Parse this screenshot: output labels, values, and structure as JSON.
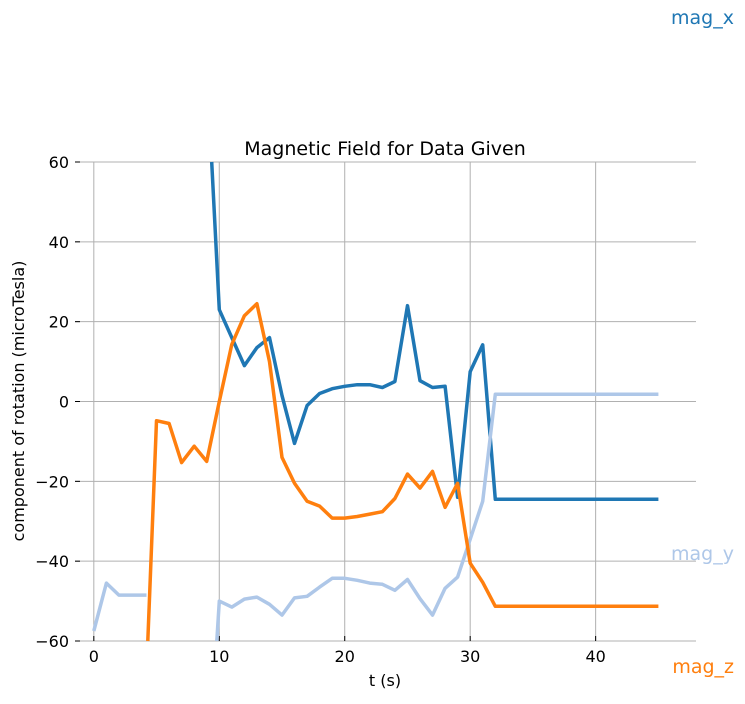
{
  "chart_data": {
    "type": "line",
    "title": "Magnetic Field for Data Given",
    "xlabel": "t (s)",
    "ylabel": "component of rotation (microTesla)",
    "xlim": [
      -1.5,
      48
    ],
    "ylim": [
      -60,
      60
    ],
    "xticks": [
      0,
      10,
      20,
      30,
      40
    ],
    "yticks": [
      -60,
      -40,
      -20,
      0,
      20,
      40,
      60
    ],
    "grid": true,
    "legend": "right, labels at line ends",
    "series": [
      {
        "name": "mag_x",
        "color": "#1f77b4",
        "x": [
          9.4,
          10,
          11,
          12,
          13,
          14,
          15,
          16,
          17,
          18,
          19,
          20,
          21,
          22,
          23,
          24,
          25,
          26,
          27,
          28,
          29,
          30,
          31,
          32,
          45
        ],
        "y": [
          60,
          23,
          16,
          9,
          13.5,
          16,
          1.5,
          -10.5,
          -1,
          2,
          3.2,
          3.8,
          4.2,
          4.2,
          3.5,
          5,
          24,
          5.2,
          3.5,
          3.8,
          -24,
          7.5,
          14.2,
          -24.5,
          -24.5
        ]
      },
      {
        "name": "mag_y",
        "color": "#aec7e8",
        "x": [
          0,
          1,
          2,
          3,
          4,
          4.2,
          null,
          9.8,
          10,
          11,
          12,
          13,
          14,
          15,
          16,
          17,
          18,
          19,
          20,
          21,
          22,
          23,
          24,
          25,
          26,
          27,
          28,
          29,
          30,
          31,
          32,
          45
        ],
        "y": [
          -57.5,
          -45.5,
          -48.5,
          -48.5,
          -48.5,
          -48.5,
          null,
          -60,
          -50,
          -51.5,
          -49.5,
          -49,
          -50.8,
          -53.5,
          -49.2,
          -48.8,
          -46.5,
          -44.3,
          -44.3,
          -44.8,
          -45.5,
          -45.8,
          -47.3,
          -44.6,
          -49.4,
          -53.5,
          -46.8,
          -44,
          -34.5,
          -25,
          1.8,
          1.8
        ]
      },
      {
        "name": "mag_z",
        "color": "#ff7f0e",
        "x": [
          4.3,
          5,
          6,
          7,
          8,
          9,
          10,
          11,
          12,
          13,
          14,
          15,
          16,
          17,
          18,
          19,
          20,
          21,
          22,
          23,
          24,
          25,
          26,
          27,
          28,
          29,
          30,
          31,
          32,
          45
        ],
        "y": [
          -60,
          -4.8,
          -5.5,
          -15.3,
          -11.2,
          -15,
          0,
          14.3,
          21.5,
          24.5,
          10,
          -14,
          -20.5,
          -25,
          -26.2,
          -29.2,
          -29.2,
          -28.8,
          -28.2,
          -27.6,
          -24.3,
          -18.2,
          -21.7,
          -17.5,
          -26.5,
          -20.5,
          -40.5,
          -45.3,
          -51.3,
          -51.3
        ]
      }
    ]
  }
}
